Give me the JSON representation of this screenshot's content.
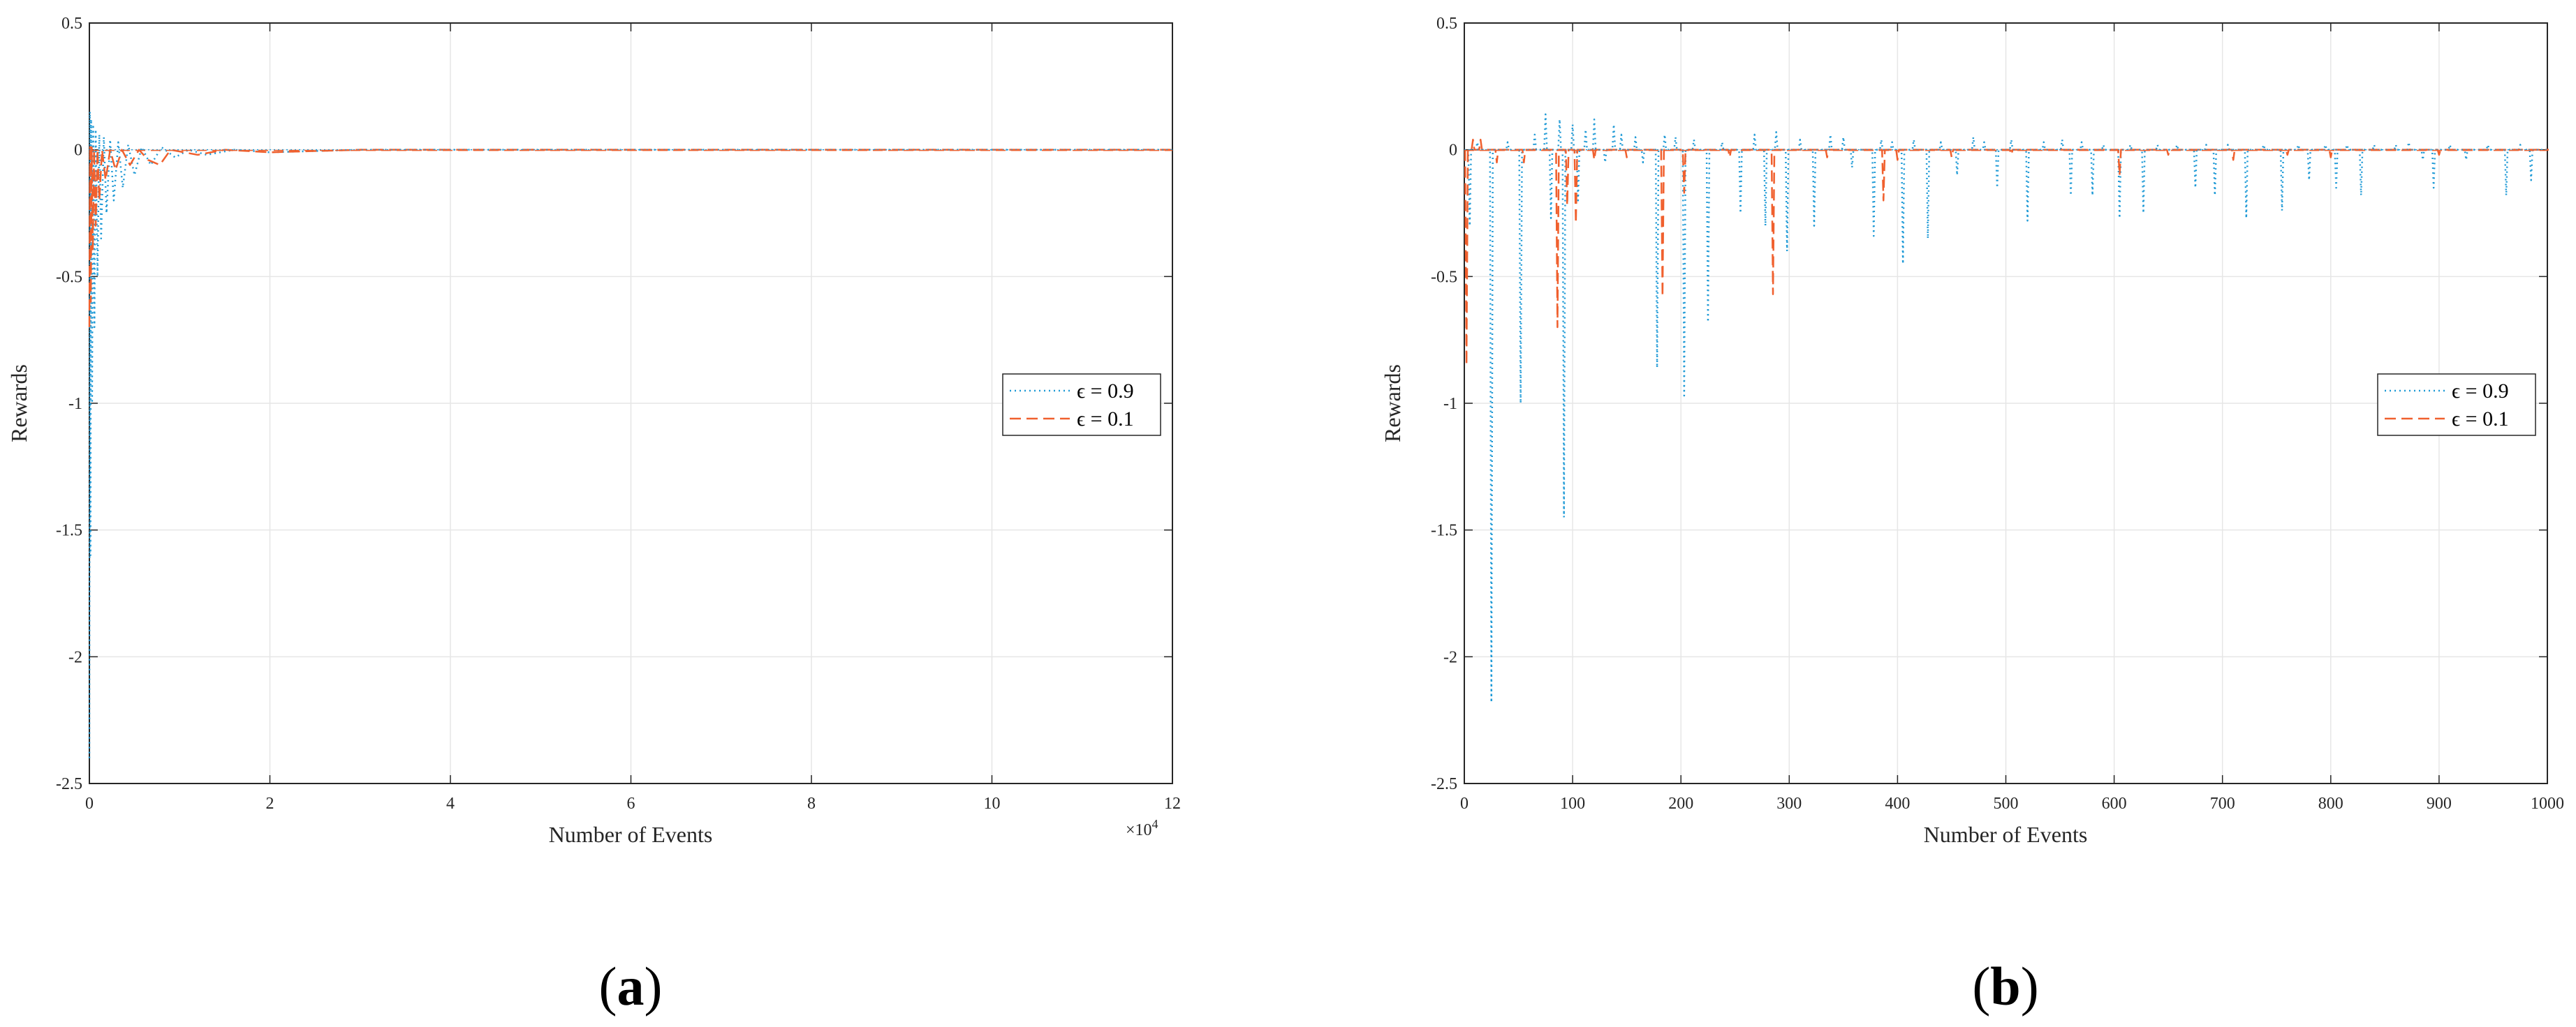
{
  "chart_data": [
    {
      "type": "line",
      "panel_label": "a",
      "xlabel": "Number of Events",
      "ylabel": "Rewards",
      "xlim": [
        0,
        120000
      ],
      "ylim": [
        -2.5,
        0.5
      ],
      "x_tick_values": [
        0,
        20000,
        40000,
        60000,
        80000,
        100000,
        120000
      ],
      "x_tick_labels": [
        "0",
        "2",
        "4",
        "6",
        "8",
        "10",
        "12"
      ],
      "x_exponent_label": "×10",
      "x_exponent_power": "4",
      "y_tick_values": [
        0.5,
        0,
        -0.5,
        -1,
        -1.5,
        -2,
        -2.5
      ],
      "y_tick_labels": [
        "0.5",
        "0",
        "-0.5",
        "-1",
        "-1.5",
        "-2",
        "-2.5"
      ],
      "grid": true,
      "legend_position": "right",
      "series": [
        {
          "name": "ϵ = 0.9",
          "style": "dotted",
          "color": "#1f9ad6",
          "points": [
            [
              0,
              -2.4
            ],
            [
              60,
              0.15
            ],
            [
              120,
              -1.6
            ],
            [
              200,
              0.12
            ],
            [
              300,
              -1.0
            ],
            [
              420,
              0.1
            ],
            [
              560,
              -0.7
            ],
            [
              700,
              0.08
            ],
            [
              900,
              -0.5
            ],
            [
              1100,
              0.06
            ],
            [
              1300,
              -0.35
            ],
            [
              1600,
              0.05
            ],
            [
              1900,
              -0.25
            ],
            [
              2300,
              0.04
            ],
            [
              2700,
              -0.2
            ],
            [
              3200,
              0.03
            ],
            [
              3700,
              -0.15
            ],
            [
              4300,
              0.02
            ],
            [
              5000,
              -0.1
            ],
            [
              5800,
              0.01
            ],
            [
              6800,
              -0.06
            ],
            [
              8000,
              0.01
            ],
            [
              9500,
              -0.03
            ],
            [
              11000,
              0.0
            ],
            [
              13000,
              -0.02
            ],
            [
              16000,
              0.0
            ],
            [
              20000,
              -0.01
            ],
            [
              30000,
              0.0
            ],
            [
              60000,
              0.0
            ],
            [
              90000,
              0.0
            ],
            [
              120000,
              0.0
            ]
          ]
        },
        {
          "name": "ϵ = 0.1",
          "style": "dashed",
          "color": "#f0602e",
          "points": [
            [
              0,
              -0.7
            ],
            [
              80,
              0.02
            ],
            [
              160,
              -0.6
            ],
            [
              260,
              0.01
            ],
            [
              380,
              -0.4
            ],
            [
              520,
              0.0
            ],
            [
              700,
              -0.3
            ],
            [
              900,
              0.0
            ],
            [
              1100,
              -0.2
            ],
            [
              1400,
              0.0
            ],
            [
              1800,
              -0.12
            ],
            [
              2300,
              0.0
            ],
            [
              2900,
              -0.08
            ],
            [
              3600,
              0.0
            ],
            [
              4500,
              -0.06
            ],
            [
              5500,
              0.0
            ],
            [
              6500,
              -0.04
            ],
            [
              7800,
              -0.06
            ],
            [
              9000,
              0.0
            ],
            [
              12000,
              -0.02
            ],
            [
              15000,
              0.0
            ],
            [
              20000,
              -0.01
            ],
            [
              30000,
              0.0
            ],
            [
              60000,
              0.0
            ],
            [
              90000,
              0.0
            ],
            [
              120000,
              0.0
            ]
          ]
        }
      ]
    },
    {
      "type": "line",
      "panel_label": "b",
      "xlabel": "Number of Events",
      "ylabel": "Rewards",
      "xlim": [
        0,
        1000
      ],
      "ylim": [
        -2.5,
        0.5
      ],
      "x_tick_values": [
        0,
        100,
        200,
        300,
        400,
        500,
        600,
        700,
        800,
        900,
        1000
      ],
      "x_tick_labels": [
        "0",
        "100",
        "200",
        "300",
        "400",
        "500",
        "600",
        "700",
        "800",
        "900",
        "1000"
      ],
      "y_tick_values": [
        0.5,
        0,
        -0.5,
        -1,
        -1.5,
        -2,
        -2.5
      ],
      "y_tick_labels": [
        "0.5",
        "0",
        "-0.5",
        "-1",
        "-1.5",
        "-2",
        "-2.5"
      ],
      "grid": true,
      "legend_position": "right",
      "series": [
        {
          "name": "ϵ = 0.9",
          "style": "dotted",
          "color": "#1f9ad6",
          "spikes": [
            [
              5,
              -0.3
            ],
            [
              12,
              0.03
            ],
            [
              25,
              -2.18
            ],
            [
              40,
              0.03
            ],
            [
              52,
              -1.0
            ],
            [
              65,
              0.06
            ],
            [
              75,
              0.14
            ],
            [
              80,
              -0.27
            ],
            [
              88,
              0.12
            ],
            [
              92,
              -1.45
            ],
            [
              100,
              0.1
            ],
            [
              105,
              -0.2
            ],
            [
              112,
              0.08
            ],
            [
              120,
              0.12
            ],
            [
              130,
              -0.05
            ],
            [
              138,
              0.1
            ],
            [
              145,
              0.06
            ],
            [
              158,
              0.05
            ],
            [
              165,
              -0.05
            ],
            [
              178,
              -0.86
            ],
            [
              185,
              0.06
            ],
            [
              195,
              0.05
            ],
            [
              203,
              -0.97
            ],
            [
              212,
              0.04
            ],
            [
              225,
              -0.68
            ],
            [
              238,
              0.03
            ],
            [
              255,
              -0.25
            ],
            [
              268,
              0.06
            ],
            [
              278,
              -0.3
            ],
            [
              288,
              0.07
            ],
            [
              298,
              -0.4
            ],
            [
              310,
              0.04
            ],
            [
              323,
              -0.3
            ],
            [
              338,
              0.06
            ],
            [
              350,
              0.05
            ],
            [
              358,
              -0.07
            ],
            [
              378,
              -0.34
            ],
            [
              385,
              0.04
            ],
            [
              395,
              0.03
            ],
            [
              405,
              -0.45
            ],
            [
              415,
              0.04
            ],
            [
              428,
              -0.35
            ],
            [
              440,
              0.03
            ],
            [
              455,
              -0.1
            ],
            [
              470,
              0.05
            ],
            [
              480,
              0.03
            ],
            [
              492,
              -0.15
            ],
            [
              505,
              0.04
            ],
            [
              520,
              -0.28
            ],
            [
              535,
              0.03
            ],
            [
              552,
              0.04
            ],
            [
              560,
              -0.18
            ],
            [
              570,
              0.03
            ],
            [
              580,
              -0.18
            ],
            [
              590,
              0.02
            ],
            [
              605,
              -0.27
            ],
            [
              615,
              0.02
            ],
            [
              627,
              -0.25
            ],
            [
              640,
              0.02
            ],
            [
              658,
              0.02
            ],
            [
              675,
              -0.15
            ],
            [
              685,
              0.02
            ],
            [
              693,
              -0.18
            ],
            [
              705,
              0.02
            ],
            [
              722,
              -0.27
            ],
            [
              738,
              0.02
            ],
            [
              755,
              -0.24
            ],
            [
              770,
              0.02
            ],
            [
              780,
              -0.12
            ],
            [
              795,
              0.02
            ],
            [
              805,
              -0.15
            ],
            [
              815,
              0.02
            ],
            [
              828,
              -0.18
            ],
            [
              840,
              0.02
            ],
            [
              860,
              0.02
            ],
            [
              872,
              0.03
            ],
            [
              885,
              -0.04
            ],
            [
              895,
              -0.15
            ],
            [
              910,
              0.02
            ],
            [
              925,
              -0.04
            ],
            [
              945,
              0.02
            ],
            [
              962,
              -0.18
            ],
            [
              975,
              0.02
            ],
            [
              985,
              -0.12
            ],
            [
              1000,
              0.0
            ]
          ]
        },
        {
          "name": "ϵ = 0.1",
          "style": "dashed",
          "color": "#f0602e",
          "spikes": [
            [
              2,
              -0.85
            ],
            [
              8,
              0.04
            ],
            [
              15,
              0.04
            ],
            [
              30,
              -0.05
            ],
            [
              55,
              -0.05
            ],
            [
              86,
              -0.7
            ],
            [
              95,
              -0.22
            ],
            [
              103,
              -0.29
            ],
            [
              120,
              -0.04
            ],
            [
              150,
              -0.03
            ],
            [
              183,
              -0.58
            ],
            [
              203,
              -0.17
            ],
            [
              245,
              -0.03
            ],
            [
              285,
              -0.57
            ],
            [
              335,
              -0.03
            ],
            [
              387,
              -0.2
            ],
            [
              400,
              -0.04
            ],
            [
              450,
              -0.03
            ],
            [
              505,
              -0.02
            ],
            [
              605,
              -0.1
            ],
            [
              650,
              -0.02
            ],
            [
              710,
              -0.04
            ],
            [
              760,
              -0.02
            ],
            [
              800,
              -0.03
            ],
            [
              900,
              -0.02
            ],
            [
              1000,
              0.0
            ]
          ]
        }
      ]
    }
  ]
}
